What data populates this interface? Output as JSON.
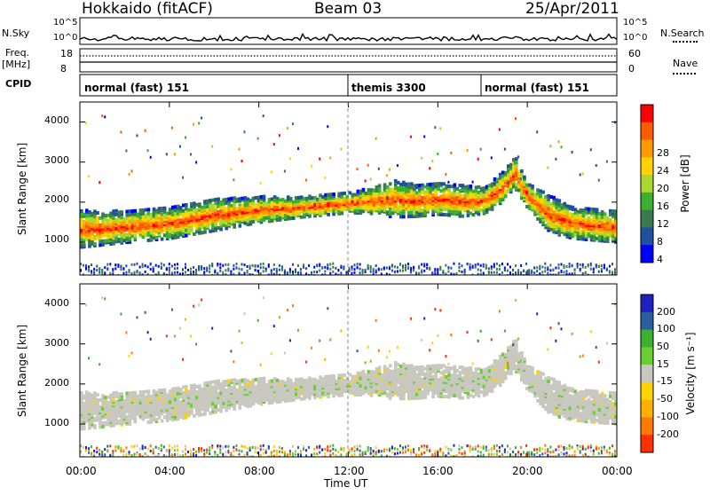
{
  "header": {
    "radar_title": "Hokkaido (fitACF)",
    "beam_title": "Beam 03",
    "date_title": "25/Apr/2011"
  },
  "small_panels": {
    "nsky_label": "N.Sky",
    "nsky_ticks_left": [
      "10^5",
      "10^0"
    ],
    "nsky_ticks_right": [
      "10^5",
      "10^0"
    ],
    "nsearch_label": "N.Search",
    "freq_label": "Freq.",
    "freq_unit": "[MHz]",
    "freq_ticks": [
      "18",
      "8"
    ],
    "nave_label": "Nave",
    "nave_ticks": [
      "60",
      "0"
    ],
    "cpid_label": "CPID"
  },
  "cpid": {
    "modes": [
      {
        "label": "normal (fast) 151",
        "start_hour": 0
      },
      {
        "label": "themis 3300",
        "start_hour": 12
      },
      {
        "label": "normal (fast) 151",
        "start_hour": 18
      }
    ]
  },
  "time_axis": {
    "label": "Time UT",
    "ticks": [
      "00:00",
      "04:00",
      "08:00",
      "12:00",
      "16:00",
      "20:00",
      "00:00"
    ]
  },
  "power_panel": {
    "ylabel": "Slant Range [km]",
    "yticks": [
      "1000",
      "2000",
      "3000",
      "4000"
    ],
    "colorbar_label": "Power [dB]",
    "colorbar_ticks": [
      "28",
      "24",
      "20",
      "16",
      "12",
      "8",
      "4"
    ],
    "colorbar_colors": [
      "#ff0000",
      "#ff5a00",
      "#ff9a00",
      "#ffd200",
      "#a8d830",
      "#3cb030",
      "#3a7a50",
      "#2050a0",
      "#0000ff"
    ]
  },
  "velocity_panel": {
    "ylabel": "Slant Range [km]",
    "yticks": [
      "1000",
      "2000",
      "3000",
      "4000"
    ],
    "colorbar_label": "Velocity [m s⁻¹]",
    "colorbar_ticks": [
      "200",
      "100",
      "50",
      "15",
      "-15",
      "-50",
      "-100",
      "-200"
    ],
    "colorbar_colors": [
      "#2020c0",
      "#2a60a0",
      "#3cb030",
      "#6acd30",
      "#c8c8c0",
      "#ffd200",
      "#ffb000",
      "#ff7a00",
      "#ff3000"
    ]
  },
  "chart_data": {
    "type": "heatmap",
    "x_range_hours": [
      0,
      24
    ],
    "y_range_km": [
      180,
      4500
    ],
    "echo_band": {
      "hours": [
        0,
        2,
        4,
        6,
        8,
        10,
        12,
        13,
        14,
        15,
        16,
        17,
        18,
        18.8,
        19.4,
        20,
        21,
        22,
        23,
        24
      ],
      "center_km": [
        1300,
        1350,
        1450,
        1650,
        1780,
        1850,
        1950,
        2000,
        2050,
        2000,
        2050,
        2000,
        2000,
        2300,
        2700,
        2100,
        1650,
        1450,
        1400,
        1350
      ],
      "halfwidth_km": [
        350,
        300,
        300,
        300,
        250,
        200,
        200,
        250,
        350,
        300,
        300,
        300,
        250,
        300,
        300,
        250,
        350,
        300,
        300,
        300
      ]
    }
  }
}
